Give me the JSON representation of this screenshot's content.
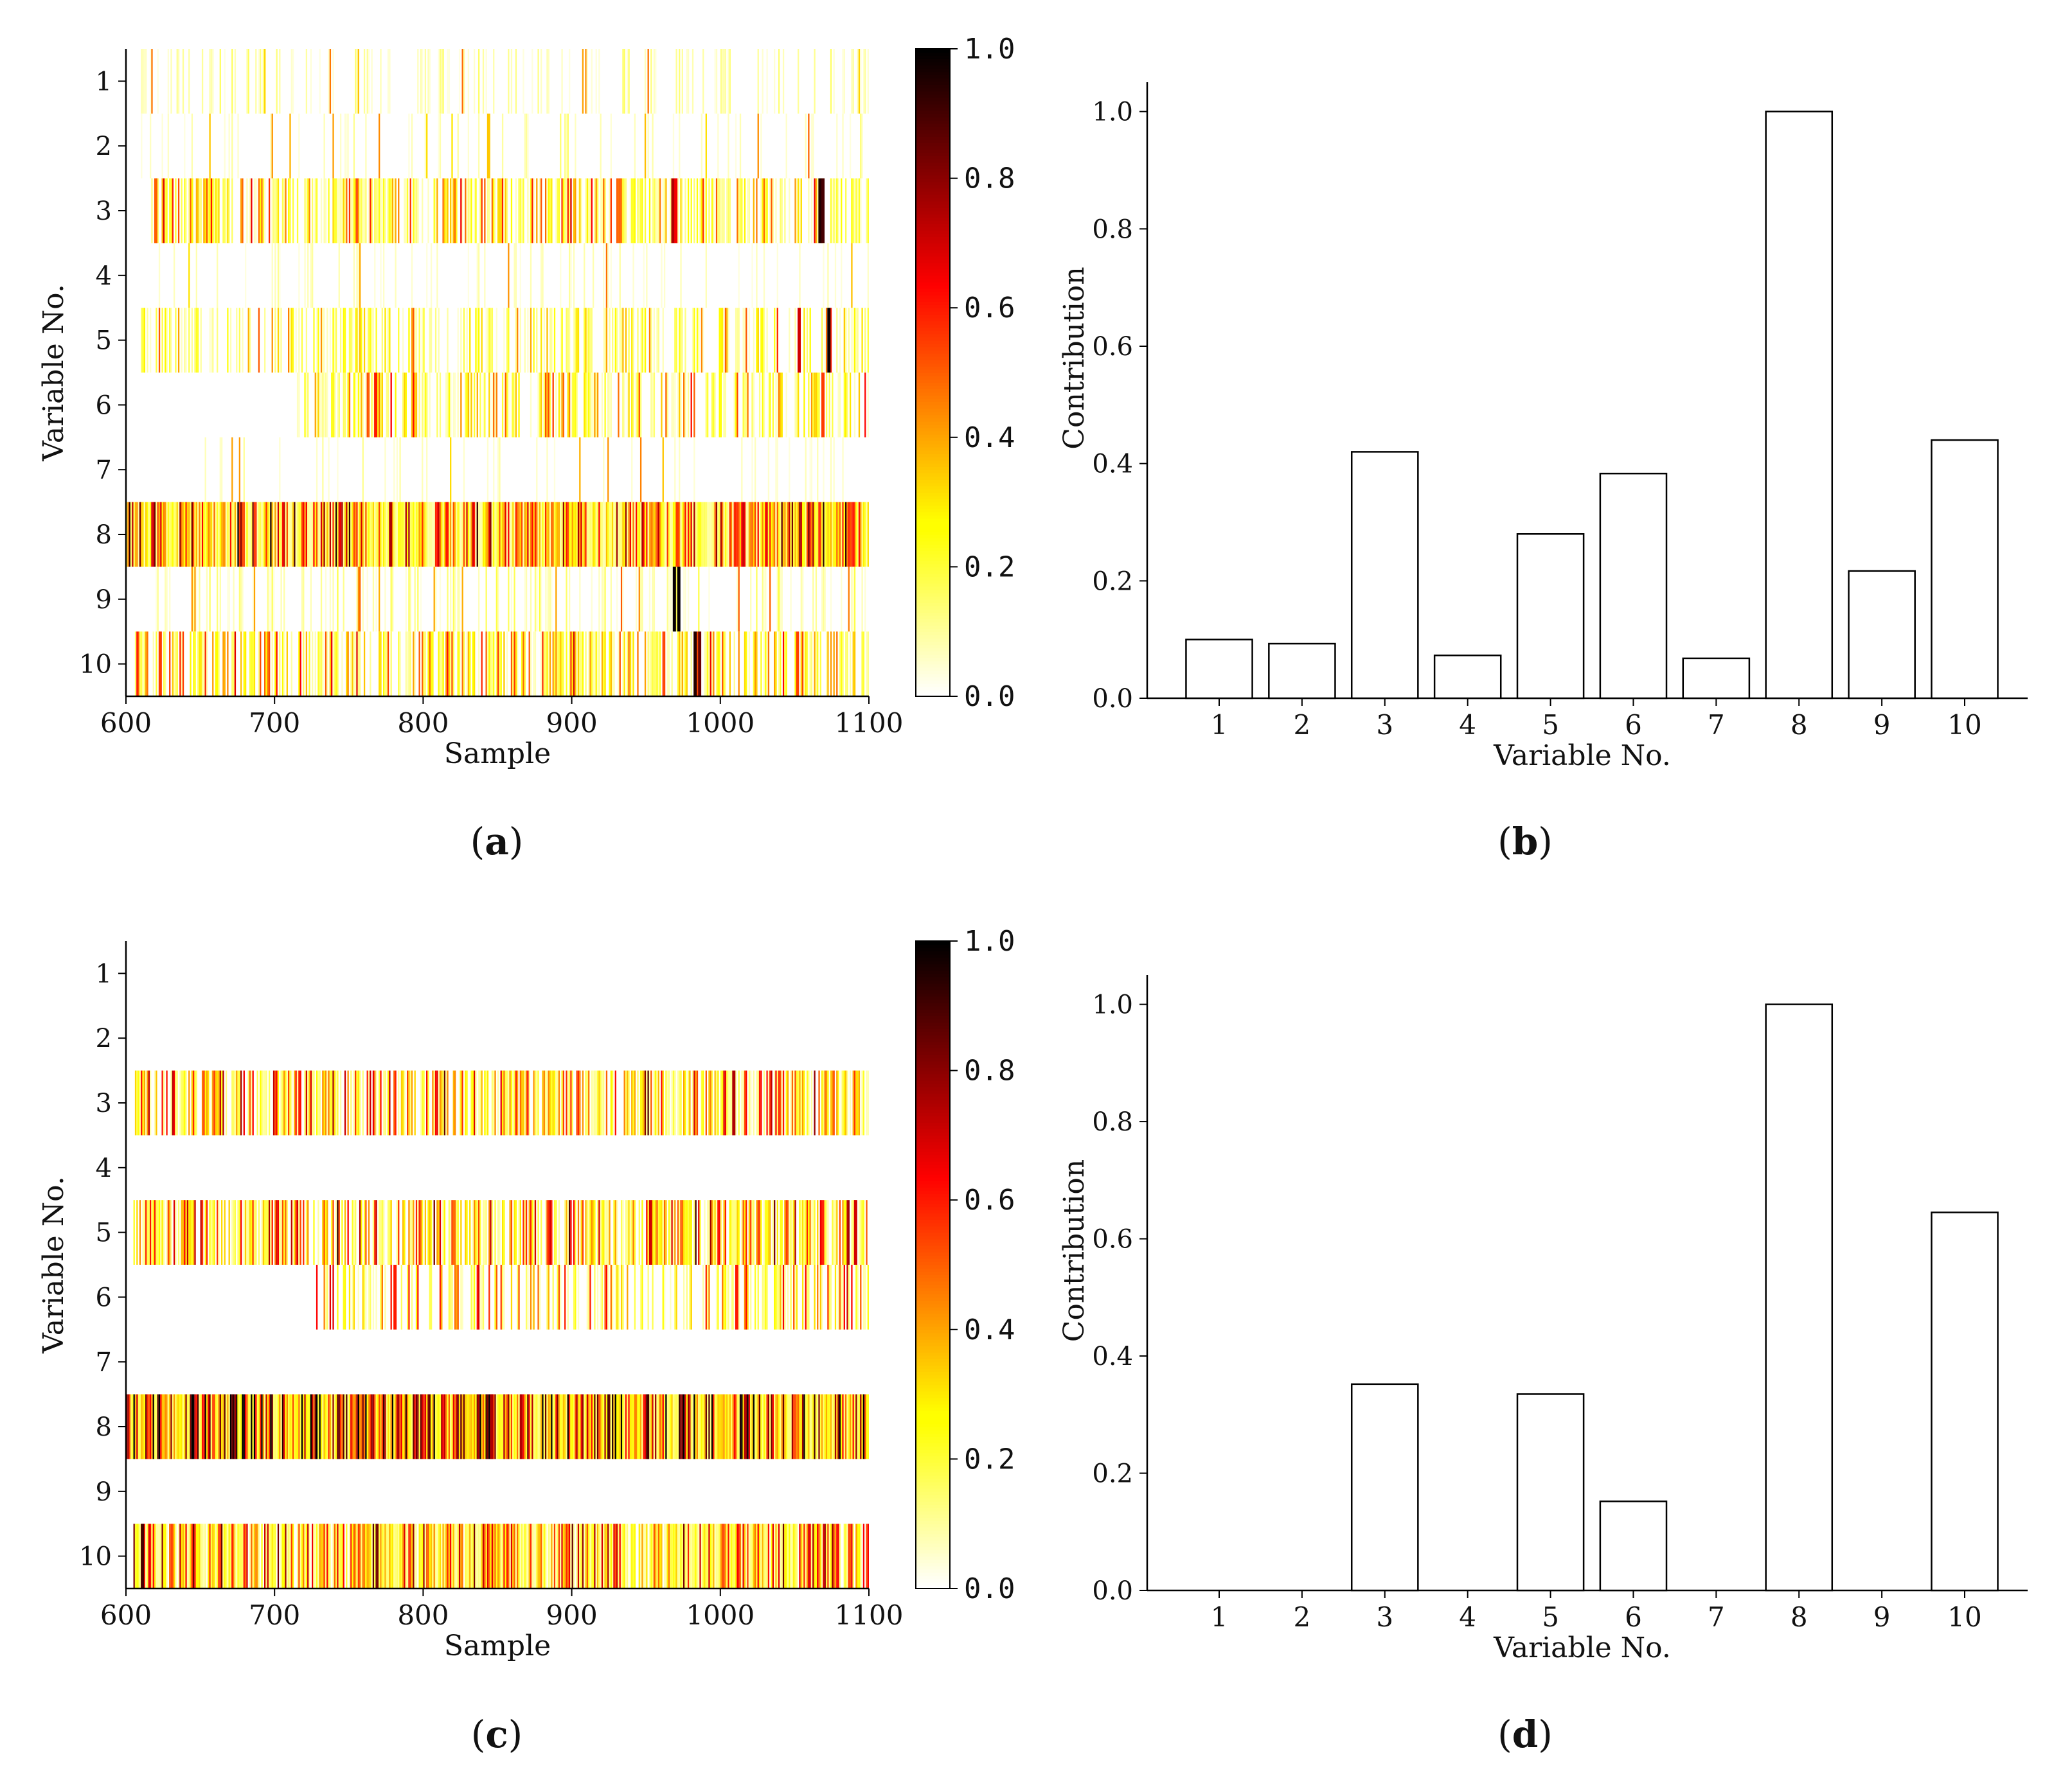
{
  "chart_data": [
    {
      "id": "a",
      "type": "heatmap",
      "caption_letter": "a",
      "xlabel": "Sample",
      "ylabel": "Variable No.",
      "xlim": [
        600,
        1100
      ],
      "x_ticks": [
        "600",
        "700",
        "800",
        "900",
        "1000",
        "1100"
      ],
      "y_ticks": [
        "1",
        "2",
        "3",
        "4",
        "5",
        "6",
        "7",
        "8",
        "9",
        "10"
      ],
      "colorbar": {
        "range": [
          0.0,
          1.0
        ],
        "ticks": [
          "0.0",
          "0.2",
          "0.4",
          "0.6",
          "0.8",
          "1.0"
        ],
        "colormap": "hot_r"
      },
      "rows": [
        {
          "variable": 1,
          "start": 610,
          "level": 0.06,
          "density": 0.35,
          "hot_spots": []
        },
        {
          "variable": 2,
          "start": 610,
          "level": 0.05,
          "density": 0.25,
          "hot_spots": [
            {
              "x": 843,
              "v": 0.35
            }
          ]
        },
        {
          "variable": 3,
          "start": 617,
          "level": 0.22,
          "density": 0.65,
          "hot_spots": [
            {
              "x": 967,
              "v": 0.75
            },
            {
              "x": 969,
              "v": 0.65
            },
            {
              "x": 1066,
              "v": 0.95
            },
            {
              "x": 1068,
              "v": 0.9
            },
            {
              "x": 619,
              "v": 0.5
            }
          ]
        },
        {
          "variable": 4,
          "start": 610,
          "level": 0.04,
          "density": 0.2,
          "hot_spots": []
        },
        {
          "variable": 5,
          "start": 605,
          "level": 0.16,
          "density": 0.5,
          "hot_spots": [
            {
              "x": 1052,
              "v": 0.7
            },
            {
              "x": 1072,
              "v": 0.98
            }
          ]
        },
        {
          "variable": 6,
          "start": 715,
          "level": 0.2,
          "density": 0.55,
          "hot_spots": [
            {
              "x": 767,
              "v": 0.6
            },
            {
              "x": 1068,
              "v": 0.55
            }
          ]
        },
        {
          "variable": 7,
          "start": 620,
          "level": 0.04,
          "density": 0.2,
          "hot_spots": []
        },
        {
          "variable": 8,
          "start": 600,
          "level": 0.32,
          "density": 1.0,
          "hot_spots": [
            {
              "x": 777,
              "v": 0.75
            },
            {
              "x": 970,
              "v": 0.55
            },
            {
              "x": 815,
              "v": 0.6
            }
          ]
        },
        {
          "variable": 9,
          "start": 620,
          "level": 0.07,
          "density": 0.35,
          "hot_spots": [
            {
              "x": 968,
              "v": 0.99
            },
            {
              "x": 971,
              "v": 0.99
            }
          ]
        },
        {
          "variable": 10,
          "start": 605,
          "level": 0.24,
          "density": 0.6,
          "hot_spots": [
            {
              "x": 982,
              "v": 0.95
            },
            {
              "x": 985,
              "v": 0.85
            },
            {
              "x": 622,
              "v": 0.55
            }
          ]
        }
      ]
    },
    {
      "id": "b",
      "type": "bar",
      "caption_letter": "b",
      "xlabel": "Variable No.",
      "ylabel": "Contribution",
      "ylim": [
        0.0,
        1.05
      ],
      "y_ticks": [
        "0.0",
        "0.2",
        "0.4",
        "0.6",
        "0.8",
        "1.0"
      ],
      "categories": [
        "1",
        "2",
        "3",
        "4",
        "5",
        "6",
        "7",
        "8",
        "9",
        "10"
      ],
      "values": [
        0.1,
        0.093,
        0.42,
        0.073,
        0.28,
        0.383,
        0.068,
        1.0,
        0.217,
        0.44
      ]
    },
    {
      "id": "c",
      "type": "heatmap",
      "caption_letter": "c",
      "xlabel": "Sample",
      "ylabel": "Variable No.",
      "xlim": [
        600,
        1100
      ],
      "x_ticks": [
        "600",
        "700",
        "800",
        "900",
        "1000",
        "1100"
      ],
      "y_ticks": [
        "1",
        "2",
        "3",
        "4",
        "5",
        "6",
        "7",
        "8",
        "9",
        "10"
      ],
      "colorbar": {
        "range": [
          0.0,
          1.0
        ],
        "ticks": [
          "0.0",
          "0.2",
          "0.4",
          "0.6",
          "0.8",
          "1.0"
        ],
        "colormap": "hot_r"
      },
      "rows": [
        {
          "variable": 1,
          "start": 600,
          "level": 0.0,
          "density": 0.0,
          "hot_spots": []
        },
        {
          "variable": 2,
          "start": 600,
          "level": 0.0,
          "density": 0.0,
          "hot_spots": []
        },
        {
          "variable": 3,
          "start": 605,
          "level": 0.28,
          "density": 0.7,
          "hot_spots": [
            {
              "x": 1008,
              "v": 0.75
            }
          ]
        },
        {
          "variable": 4,
          "start": 600,
          "level": 0.0,
          "density": 0.0,
          "hot_spots": []
        },
        {
          "variable": 5,
          "start": 605,
          "level": 0.3,
          "density": 0.7,
          "hot_spots": [
            {
              "x": 1090,
              "v": 0.7
            },
            {
              "x": 952,
              "v": 0.7
            }
          ]
        },
        {
          "variable": 6,
          "start": 728,
          "level": 0.24,
          "density": 0.45,
          "hot_spots": [
            {
              "x": 780,
              "v": 0.6
            },
            {
              "x": 1010,
              "v": 0.6
            }
          ]
        },
        {
          "variable": 7,
          "start": 600,
          "level": 0.0,
          "density": 0.0,
          "hot_spots": []
        },
        {
          "variable": 8,
          "start": 600,
          "level": 0.48,
          "density": 1.0,
          "hot_spots": [
            {
              "x": 950,
              "v": 0.9
            },
            {
              "x": 845,
              "v": 0.75
            }
          ]
        },
        {
          "variable": 9,
          "start": 600,
          "level": 0.0,
          "density": 0.0,
          "hot_spots": []
        },
        {
          "variable": 10,
          "start": 605,
          "level": 0.3,
          "density": 0.95,
          "hot_spots": [
            {
              "x": 610,
              "v": 0.9
            }
          ]
        }
      ]
    },
    {
      "id": "d",
      "type": "bar",
      "caption_letter": "d",
      "xlabel": "Variable No.",
      "ylabel": "Contribution",
      "ylim": [
        0.0,
        1.05
      ],
      "y_ticks": [
        "0.0",
        "0.2",
        "0.4",
        "0.6",
        "0.8",
        "1.0"
      ],
      "categories": [
        "1",
        "2",
        "3",
        "4",
        "5",
        "6",
        "7",
        "8",
        "9",
        "10"
      ],
      "values": [
        0.0,
        0.0,
        0.352,
        0.0,
        0.335,
        0.152,
        0.0,
        1.0,
        0.0,
        0.645
      ]
    }
  ]
}
